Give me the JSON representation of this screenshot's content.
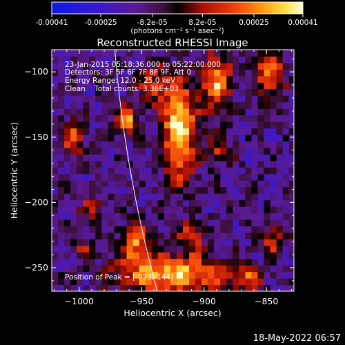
{
  "colorbar": {
    "tick_labels": [
      "-0.00041",
      "-0.00025",
      "-8.2e-05",
      "8.2e-05",
      "0.00025",
      "0.00041"
    ],
    "tick_values": [
      -0.00041,
      -0.00025,
      -8.2e-05,
      8.2e-05,
      0.00025,
      0.00041
    ],
    "range": [
      -0.00041,
      0.00041
    ],
    "unit_label": "(photons cm⁻² s⁻¹ asec⁻²)"
  },
  "chart_data": {
    "type": "heatmap",
    "title": "Reconstructed RHESSI Image",
    "xlabel": "Heliocentric X (arcsec)",
    "ylabel": "Heliocentric Y (arcsec)",
    "xlim": [
      -1022,
      -828
    ],
    "ylim": [
      -268,
      -83
    ],
    "x_ticks": [
      -1000,
      -950,
      -900,
      -850
    ],
    "x_tick_labels": [
      "−1000",
      "−950",
      "−900",
      "−850"
    ],
    "y_ticks": [
      -250,
      -200,
      -150,
      -100
    ],
    "y_tick_labels": [
      "−250",
      "−200",
      "−150",
      "−100"
    ],
    "grid": false,
    "peak": {
      "x": -923,
      "y": -144
    },
    "sources": [
      {
        "x": -920,
        "y": -145,
        "sx": 9,
        "sy": 26,
        "amp": 1.0
      },
      {
        "x": -962,
        "y": -136,
        "sx": 6,
        "sy": 8,
        "amp": 0.75
      },
      {
        "x": -890,
        "y": -108,
        "sx": 8,
        "sy": 16,
        "amp": 0.75
      },
      {
        "x": -848,
        "y": -100,
        "sx": 8,
        "sy": 14,
        "amp": 0.65
      },
      {
        "x": -1005,
        "y": -150,
        "sx": 6,
        "sy": 9,
        "amp": 0.6
      },
      {
        "x": -940,
        "y": -110,
        "sx": 8,
        "sy": 9,
        "amp": 0.5
      },
      {
        "x": -890,
        "y": -160,
        "sx": 7,
        "sy": 7,
        "amp": 0.45
      },
      {
        "x": -925,
        "y": -255,
        "sx": 30,
        "sy": 10,
        "amp": 0.9
      },
      {
        "x": -955,
        "y": -230,
        "sx": 9,
        "sy": 10,
        "amp": 0.7
      },
      {
        "x": -910,
        "y": -226,
        "sx": 7,
        "sy": 8,
        "amp": 0.55
      },
      {
        "x": -845,
        "y": -230,
        "sx": 6,
        "sy": 8,
        "amp": 0.55
      },
      {
        "x": -865,
        "y": -258,
        "sx": 8,
        "sy": 8,
        "amp": 0.45
      },
      {
        "x": -990,
        "y": -205,
        "sx": 7,
        "sy": 7,
        "amp": 0.35
      },
      {
        "x": -995,
        "y": -235,
        "sx": 6,
        "sy": 6,
        "amp": 0.35
      }
    ],
    "annotations": [
      "23-Jan-2015 05:18:36.000 to 05:22:00.000",
      "Detectors: 3F 5F 6F 7F 8F 9F, Att 0",
      "Energy Range: 12.0 - 25.0 keV",
      "Clean    Total counts: 3.36E+03"
    ],
    "peak_label": "Position of Peak = [-923,-144]",
    "limb_line": true
  },
  "footer": {
    "timestamp": "18-May-2022 06:57"
  }
}
